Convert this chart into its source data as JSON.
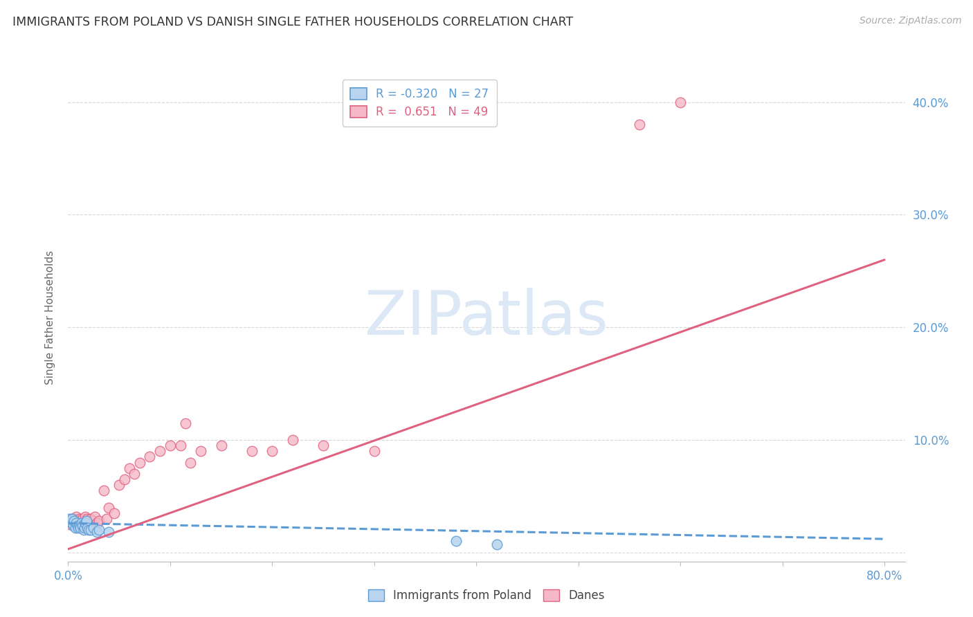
{
  "title": "IMMIGRANTS FROM POLAND VS DANISH SINGLE FATHER HOUSEHOLDS CORRELATION CHART",
  "source": "Source: ZipAtlas.com",
  "ylabel": "Single Father Households",
  "yticks": [
    0.0,
    0.1,
    0.2,
    0.3,
    0.4
  ],
  "ytick_labels": [
    "",
    "10.0%",
    "20.0%",
    "30.0%",
    "40.0%"
  ],
  "xtick_positions": [
    0.0,
    0.1,
    0.2,
    0.3,
    0.4,
    0.5,
    0.6,
    0.7,
    0.8
  ],
  "xtick_labels": [
    "0.0%",
    "",
    "",
    "",
    "",
    "",
    "",
    "",
    "80.0%"
  ],
  "xlim": [
    0.0,
    0.82
  ],
  "ylim": [
    -0.008,
    0.425
  ],
  "color_blue_fill": "#b8d4ee",
  "color_blue_edge": "#5b9bd5",
  "color_pink_fill": "#f5b8c8",
  "color_pink_edge": "#e06080",
  "color_axis_labels": "#5b9bd5",
  "watermark_text": "ZIPatlas",
  "watermark_color": "#dce8f5",
  "grid_color": "#d8d8d8",
  "background_color": "#ffffff",
  "poland_x": [
    0.001,
    0.002,
    0.003,
    0.004,
    0.005,
    0.006,
    0.007,
    0.008,
    0.009,
    0.01,
    0.011,
    0.012,
    0.013,
    0.014,
    0.015,
    0.016,
    0.017,
    0.018,
    0.019,
    0.02,
    0.022,
    0.025,
    0.028,
    0.03,
    0.04,
    0.38,
    0.42
  ],
  "poland_y": [
    0.03,
    0.028,
    0.026,
    0.03,
    0.024,
    0.028,
    0.022,
    0.026,
    0.024,
    0.022,
    0.024,
    0.022,
    0.026,
    0.024,
    0.02,
    0.022,
    0.026,
    0.028,
    0.022,
    0.02,
    0.02,
    0.022,
    0.018,
    0.02,
    0.018,
    0.01,
    0.007
  ],
  "danes_x": [
    0.001,
    0.002,
    0.003,
    0.004,
    0.005,
    0.006,
    0.007,
    0.008,
    0.009,
    0.01,
    0.011,
    0.012,
    0.013,
    0.014,
    0.015,
    0.016,
    0.017,
    0.018,
    0.019,
    0.02,
    0.022,
    0.024,
    0.026,
    0.028,
    0.03,
    0.035,
    0.038,
    0.04,
    0.045,
    0.05,
    0.055,
    0.06,
    0.065,
    0.07,
    0.08,
    0.09,
    0.1,
    0.11,
    0.115,
    0.12,
    0.13,
    0.15,
    0.18,
    0.2,
    0.22,
    0.25,
    0.3,
    0.56,
    0.6
  ],
  "danes_y": [
    0.028,
    0.025,
    0.03,
    0.028,
    0.026,
    0.03,
    0.024,
    0.032,
    0.028,
    0.026,
    0.03,
    0.026,
    0.028,
    0.03,
    0.024,
    0.028,
    0.032,
    0.026,
    0.03,
    0.024,
    0.03,
    0.028,
    0.032,
    0.026,
    0.028,
    0.055,
    0.03,
    0.04,
    0.035,
    0.06,
    0.065,
    0.075,
    0.07,
    0.08,
    0.085,
    0.09,
    0.095,
    0.095,
    0.115,
    0.08,
    0.09,
    0.095,
    0.09,
    0.09,
    0.1,
    0.095,
    0.09,
    0.38,
    0.4
  ],
  "blue_line_x": [
    0.0,
    0.8
  ],
  "blue_line_y": [
    0.026,
    0.012
  ],
  "pink_line_x": [
    0.0,
    0.8
  ],
  "pink_line_y": [
    0.003,
    0.26
  ],
  "scatter_size": 110,
  "line_width": 2.2
}
